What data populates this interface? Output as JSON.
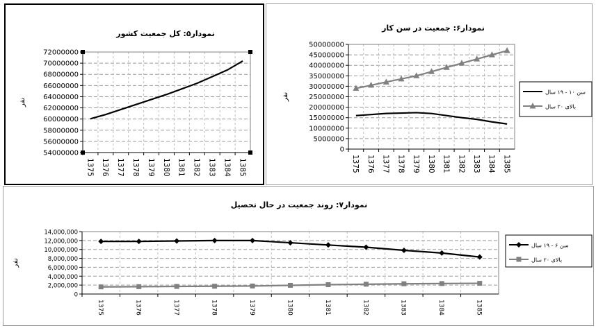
{
  "chart_data": [
    {
      "id": "total-population",
      "type": "line",
      "title": "نمودار۵: کل جمعیت کشور",
      "ylabel": "نفر",
      "categories": [
        "1375",
        "1376",
        "1377",
        "1378",
        "1379",
        "1380",
        "1381",
        "1382",
        "1383",
        "1384",
        "1385"
      ],
      "ylim": [
        54000000,
        72000000
      ],
      "yticks": [
        54000000,
        56000000,
        58000000,
        60000000,
        62000000,
        64000000,
        66000000,
        68000000,
        70000000,
        72000000
      ],
      "ytick_labels": [
        "54000000",
        "56000000",
        "58000000",
        "60000000",
        "62000000",
        "64000000",
        "66000000",
        "68000000",
        "70000000",
        "72000000"
      ],
      "grid": true,
      "legend": "none",
      "series": [
        {
          "values": [
            60050000,
            60800000,
            61700000,
            62600000,
            63500000,
            64400000,
            65400000,
            66400000,
            67600000,
            68800000,
            70400000
          ],
          "color": "#000000",
          "marker": "none"
        }
      ]
    },
    {
      "id": "working-age-population",
      "type": "line",
      "title": "نمودار۶: جمعیت در سن کار",
      "ylabel": "نفر",
      "categories": [
        "1375",
        "1376",
        "1377",
        "1378",
        "1379",
        "1380",
        "1381",
        "1382",
        "1383",
        "1384",
        "1385"
      ],
      "ylim": [
        0,
        50000000
      ],
      "yticks": [
        0,
        5000000,
        10000000,
        15000000,
        20000000,
        25000000,
        30000000,
        35000000,
        40000000,
        45000000,
        50000000
      ],
      "ytick_labels": [
        "0",
        "5000000",
        "10000000",
        "15000000",
        "20000000",
        "25000000",
        "30000000",
        "35000000",
        "40000000",
        "45000000",
        "50000000"
      ],
      "grid": true,
      "legend": "right",
      "series": [
        {
          "name": "سن ۱۰ - ۱۹ سال",
          "values": [
            16000000,
            16500000,
            17000000,
            17200000,
            17400000,
            17000000,
            16000000,
            15000000,
            14200000,
            13000000,
            12000000
          ],
          "color": "#000000",
          "marker": "none"
        },
        {
          "name": "بالای ۲۰ سال",
          "values": [
            29000000,
            30500000,
            32000000,
            33500000,
            35000000,
            37000000,
            39000000,
            41000000,
            43000000,
            45000000,
            47000000
          ],
          "color": "#808080",
          "marker": "triangle"
        }
      ]
    },
    {
      "id": "students-population",
      "type": "line",
      "title": "نمودار۷: روند جمعیت در حال تحصیل",
      "ylabel": "نفر",
      "categories": [
        "1375",
        "1376",
        "1377",
        "1378",
        "1379",
        "1380",
        "1381",
        "1382",
        "1383",
        "1384",
        "1385"
      ],
      "ylim": [
        0,
        14000000
      ],
      "yticks": [
        0,
        2000000,
        4000000,
        6000000,
        8000000,
        10000000,
        12000000,
        14000000
      ],
      "ytick_labels": [
        "0",
        "2,000,000",
        "4,000,000",
        "6,000,000",
        "8,000,000",
        "10,000,000",
        "12,000,000",
        "14,000,000"
      ],
      "grid": true,
      "legend": "right",
      "series": [
        {
          "name": "سن ۶ - ۱۹ سال",
          "values": [
            11800000,
            11800000,
            11900000,
            12000000,
            12000000,
            11500000,
            11000000,
            10500000,
            9800000,
            9200000,
            8300000
          ],
          "color": "#000000",
          "marker": "diamond"
        },
        {
          "name": "بالای ۲۰ سال",
          "values": [
            1600000,
            1650000,
            1700000,
            1750000,
            1800000,
            1950000,
            2100000,
            2200000,
            2300000,
            2350000,
            2400000
          ],
          "color": "#808080",
          "marker": "square"
        }
      ]
    }
  ]
}
